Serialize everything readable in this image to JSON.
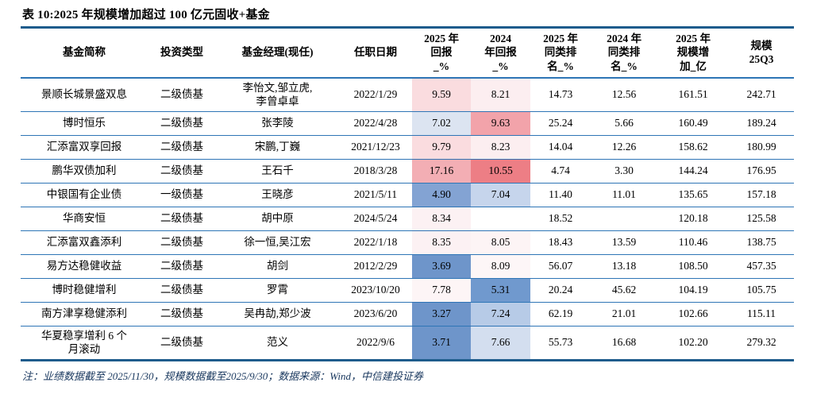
{
  "title": "表 10:2025 年规模增加超过 100 亿元固收+基金",
  "note": "注：业绩数据截至 2025/11/30，规模数据截至2025/9/30；数据来源：Wind，中信建投证券",
  "colors": {
    "thick_border": "#1E5C8C",
    "thin_border": "#2E75B6",
    "note_text": "#17365D",
    "heat_red_strong": "#ED7E85",
    "heat_blue_strong": "#6E95CA"
  },
  "table": {
    "columns": [
      {
        "key": "fund_name",
        "label": "基金简称",
        "width": 160
      },
      {
        "key": "invest_type",
        "label": "投资类型",
        "width": 86
      },
      {
        "key": "manager",
        "label": "基金经理(现任)",
        "width": 155
      },
      {
        "key": "start_date",
        "label": "任职日期",
        "width": 92
      },
      {
        "key": "ret_2025",
        "label": "2025 年\n回报\n_%",
        "width": 74
      },
      {
        "key": "ret_2024",
        "label": "2024\n年回报\n_%",
        "width": 75
      },
      {
        "key": "rank_2025",
        "label": "2025 年\n同类排\n名_%",
        "width": 76
      },
      {
        "key": "rank_2024",
        "label": "2024 年\n同类排\n名_%",
        "width": 84
      },
      {
        "key": "scale_add",
        "label": "2025 年\n规模增\n加_亿",
        "width": 90
      },
      {
        "key": "scale_25q3",
        "label": "规模\n25Q3",
        "width": 82
      }
    ],
    "rows": [
      {
        "cells": [
          "景顺长城景盛双息",
          "二级债基",
          "李怡文,邹立虎,\n李曾卓卓",
          "2022/1/29",
          "9.59",
          "8.21",
          "14.73",
          "12.56",
          "161.51",
          "242.71"
        ],
        "cell_bg": {
          "4": "#FADCDF",
          "5": "#FCEEF0"
        }
      },
      {
        "cells": [
          "博时恒乐",
          "二级债基",
          "张李陵",
          "2022/4/28",
          "7.02",
          "9.63",
          "25.24",
          "5.66",
          "160.49",
          "189.24"
        ],
        "cell_bg": {
          "4": "#DCE4F1",
          "5": "#F2A3AA"
        }
      },
      {
        "cells": [
          "汇添富双享回报",
          "二级债基",
          "宋鹏,丁巍",
          "2021/12/23",
          "9.79",
          "8.23",
          "14.04",
          "12.26",
          "158.62",
          "180.99"
        ],
        "cell_bg": {
          "4": "#FADCDF",
          "5": "#FCEEF0"
        }
      },
      {
        "cells": [
          "鹏华双债加利",
          "二级债基",
          "王石千",
          "2018/3/28",
          "17.16",
          "10.55",
          "4.74",
          "3.30",
          "144.24",
          "176.95"
        ],
        "cell_bg": {
          "4": "#F3AEB4",
          "5": "#ED7E85"
        }
      },
      {
        "cells": [
          "中银国有企业债",
          "一级债基",
          "王晓彦",
          "2021/5/11",
          "4.90",
          "7.04",
          "11.40",
          "11.01",
          "135.65",
          "157.18"
        ],
        "cell_bg": {
          "4": "#83A3D3",
          "5": "#C6D5EC"
        }
      },
      {
        "cells": [
          "华商安恒",
          "二级债基",
          "胡中原",
          "2024/5/24",
          "8.34",
          "",
          "18.52",
          "",
          "120.18",
          "125.58"
        ],
        "cell_bg": {
          "4": "#FCF1F3"
        }
      },
      {
        "cells": [
          "汇添富双鑫添利",
          "二级债基",
          "徐一恒,吴江宏",
          "2022/1/18",
          "8.35",
          "8.05",
          "18.43",
          "13.59",
          "110.46",
          "138.75"
        ],
        "cell_bg": {
          "4": "#FCF1F3",
          "5": "#FDF4F5"
        }
      },
      {
        "cells": [
          "易方达稳健收益",
          "二级债基",
          "胡剑",
          "2012/2/29",
          "3.69",
          "8.09",
          "56.07",
          "13.18",
          "108.50",
          "457.35"
        ],
        "cell_bg": {
          "4": "#6E95CA",
          "5": "#FDF6F7"
        }
      },
      {
        "cells": [
          "博时稳健增利",
          "二级债基",
          "罗霄",
          "2023/10/20",
          "7.78",
          "5.31",
          "20.24",
          "45.62",
          "104.19",
          "105.75"
        ],
        "cell_bg": {
          "4": "#FDF5F6",
          "5": "#7099CE"
        }
      },
      {
        "cells": [
          "南方津享稳健添利",
          "二级债基",
          "吴冉劼,郑少波",
          "2023/6/20",
          "3.27",
          "7.24",
          "62.19",
          "21.01",
          "102.66",
          "115.11"
        ],
        "cell_bg": {
          "4": "#6E95CA",
          "5": "#B7CBE7"
        }
      },
      {
        "cells": [
          "华夏稳享增利 6 个\n月滚动",
          "二级债基",
          "范义",
          "2022/9/6",
          "3.71",
          "7.66",
          "55.73",
          "16.68",
          "102.20",
          "279.32"
        ],
        "cell_bg": {
          "4": "#6E95CA",
          "5": "#D3DEEF"
        }
      }
    ]
  }
}
